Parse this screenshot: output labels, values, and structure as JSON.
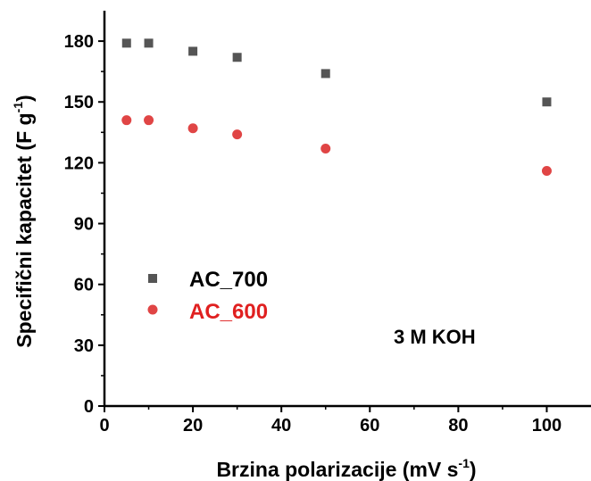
{
  "chart_data": {
    "type": "scatter",
    "title": "",
    "xlabel": "Brzina polarizacije (mV s",
    "xlabel_sup": "-1",
    "xlabel_end": ")",
    "ylabel": "Specifični kapacitet (F g",
    "ylabel_sup": "-1",
    "ylabel_end": ")",
    "xlim": [
      0,
      110
    ],
    "ylim": [
      0,
      195
    ],
    "x_ticks": [
      0,
      20,
      40,
      60,
      80,
      100
    ],
    "y_ticks": [
      0,
      30,
      60,
      90,
      120,
      150,
      180
    ],
    "x_tick_labels": [
      "0",
      "20",
      "40",
      "60",
      "80",
      "100"
    ],
    "y_tick_labels": [
      "0",
      "30",
      "60",
      "90",
      "120",
      "150",
      "180"
    ],
    "grid": false,
    "legend_position": "left-middle",
    "series": [
      {
        "name": "AC_700",
        "marker": "square",
        "color": "#555555",
        "label_color": "#000000",
        "points": [
          {
            "x": 5,
            "y": 179
          },
          {
            "x": 10,
            "y": 179
          },
          {
            "x": 20,
            "y": 175
          },
          {
            "x": 30,
            "y": 172
          },
          {
            "x": 50,
            "y": 164
          },
          {
            "x": 100,
            "y": 150
          }
        ]
      },
      {
        "name": "AC_600",
        "marker": "circle",
        "color": "#e04545",
        "label_color": "#e02020",
        "points": [
          {
            "x": 5,
            "y": 141
          },
          {
            "x": 10,
            "y": 141
          },
          {
            "x": 20,
            "y": 137
          },
          {
            "x": 30,
            "y": 134
          },
          {
            "x": 50,
            "y": 127
          },
          {
            "x": 100,
            "y": 116
          }
        ]
      }
    ],
    "annotations": [
      {
        "text": "3 M KOH"
      }
    ]
  }
}
